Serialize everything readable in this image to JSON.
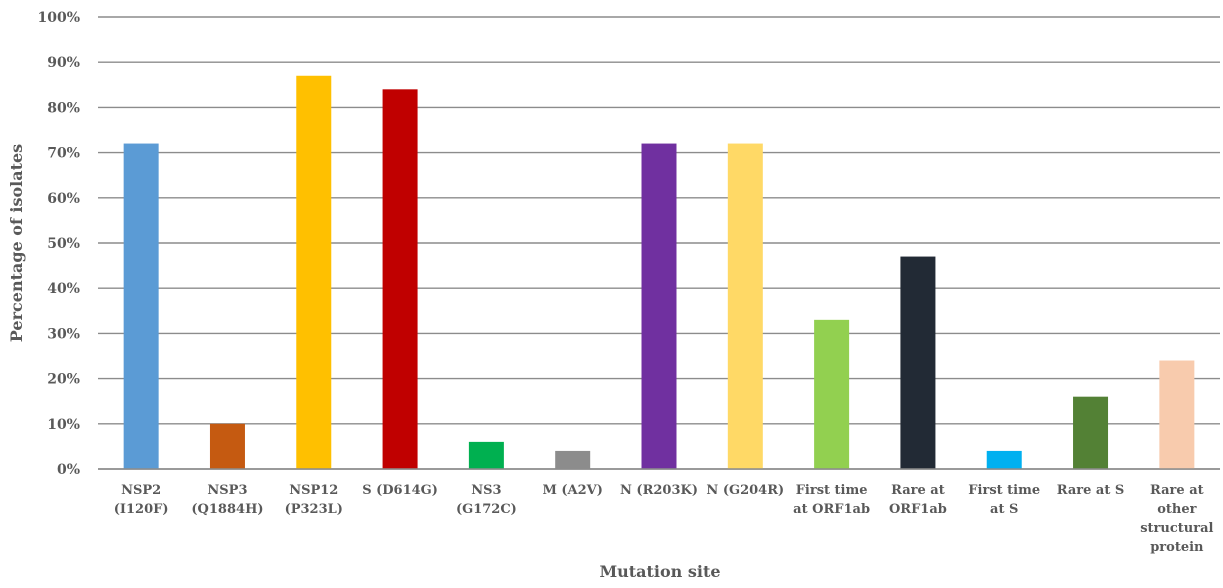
{
  "chart_data": {
    "type": "bar",
    "title": "",
    "xlabel": "Mutation site",
    "ylabel": "Percentage of isolates",
    "ylim": [
      0,
      100
    ],
    "yticks": [
      "0%",
      "10%",
      "20%",
      "30%",
      "40%",
      "50%",
      "60%",
      "70%",
      "80%",
      "90%",
      "100%"
    ],
    "grid": true,
    "legend": "none",
    "categories": [
      [
        "NSP2",
        "(I120F)"
      ],
      [
        "NSP3",
        "(Q1884H)"
      ],
      [
        "NSP12",
        "(P323L)"
      ],
      [
        "S (D614G)"
      ],
      [
        "NS3",
        "(G172C)"
      ],
      [
        "M (A2V)"
      ],
      [
        "N (R203K)"
      ],
      [
        "N (G204R)"
      ],
      [
        "First time",
        "at ORF1ab"
      ],
      [
        "Rare at",
        "ORF1ab"
      ],
      [
        "First time",
        "at S"
      ],
      [
        "Rare at S"
      ],
      [
        "Rare at",
        "other",
        "structural",
        "protein"
      ]
    ],
    "values": [
      72,
      10,
      87,
      84,
      6,
      4,
      72,
      72,
      33,
      47,
      4,
      16,
      24
    ],
    "colors": [
      "#5B9BD5",
      "#C55A11",
      "#FFC000",
      "#C00000",
      "#00B050",
      "#8C8C8C",
      "#7030A0",
      "#FFD966",
      "#92D050",
      "#222A35",
      "#00B0F0",
      "#538135",
      "#F8CBAD"
    ],
    "gridline_color": "#8C8C8C"
  }
}
